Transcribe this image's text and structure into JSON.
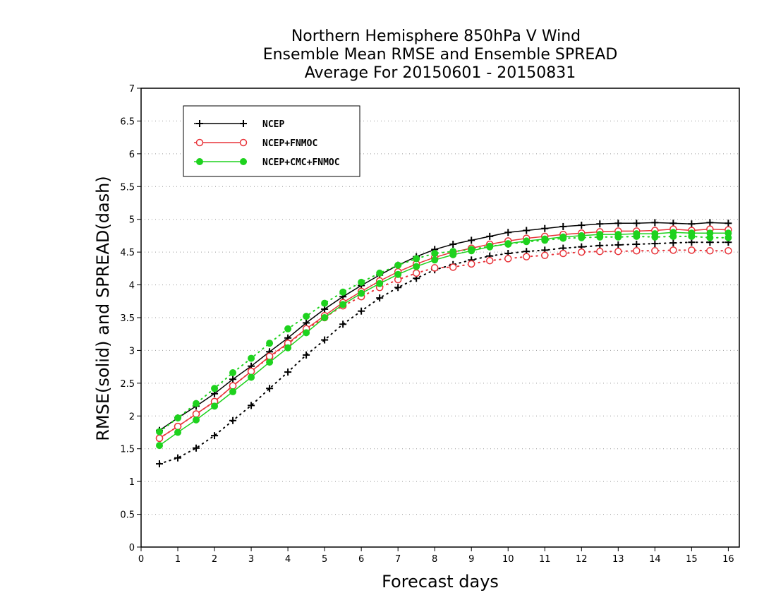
{
  "chart_data": {
    "type": "line",
    "title": [
      "Northern Hemisphere 850hPa V Wind",
      "Ensemble Mean RMSE and Ensemble SPREAD",
      "Average For 20150601 - 20150831"
    ],
    "xlabel": "Forecast days",
    "ylabel": "RMSE(solid)  and  SPREAD(dash)",
    "xlim": [
      0,
      16.3
    ],
    "ylim": [
      0,
      7
    ],
    "xticks": [
      0,
      1,
      2,
      3,
      4,
      5,
      6,
      7,
      8,
      9,
      10,
      11,
      12,
      13,
      14,
      15,
      16
    ],
    "yticks": [
      0,
      0.5,
      1,
      1.5,
      2,
      2.5,
      3,
      3.5,
      4,
      4.5,
      5,
      5.5,
      6,
      6.5,
      7
    ],
    "grid": "horizontal dotted",
    "legend_position": "top-left",
    "x": [
      0.5,
      1,
      1.5,
      2,
      2.5,
      3,
      3.5,
      4,
      4.5,
      5,
      5.5,
      6,
      6.5,
      7,
      7.5,
      8,
      8.5,
      9,
      9.5,
      10,
      10.5,
      11,
      11.5,
      12,
      12.5,
      13,
      13.5,
      14,
      14.5,
      15,
      15.5,
      16
    ],
    "series": [
      {
        "name": "NCEP",
        "color": "#000000",
        "marker": "plus",
        "rmse": [
          1.78,
          1.97,
          2.15,
          2.34,
          2.56,
          2.76,
          2.98,
          3.19,
          3.42,
          3.63,
          3.82,
          3.99,
          4.15,
          4.3,
          4.43,
          4.54,
          4.62,
          4.68,
          4.74,
          4.8,
          4.83,
          4.86,
          4.89,
          4.91,
          4.93,
          4.94,
          4.94,
          4.95,
          4.94,
          4.93,
          4.95,
          4.94
        ],
        "spread": [
          1.27,
          1.36,
          1.51,
          1.7,
          1.93,
          2.16,
          2.42,
          2.67,
          2.93,
          3.16,
          3.4,
          3.6,
          3.8,
          3.96,
          4.1,
          4.23,
          4.31,
          4.38,
          4.44,
          4.48,
          4.51,
          4.53,
          4.56,
          4.58,
          4.6,
          4.61,
          4.62,
          4.63,
          4.64,
          4.65,
          4.65,
          4.65
        ]
      },
      {
        "name": "NCEP+FNMOC",
        "color": "#e8343a",
        "marker": "open-circle",
        "rmse": [
          1.66,
          1.84,
          2.03,
          2.22,
          2.46,
          2.68,
          2.91,
          3.11,
          3.33,
          3.53,
          3.73,
          3.9,
          4.06,
          4.2,
          4.32,
          4.42,
          4.5,
          4.56,
          4.62,
          4.67,
          4.71,
          4.74,
          4.77,
          4.79,
          4.81,
          4.82,
          4.82,
          4.83,
          4.85,
          4.83,
          4.85,
          4.84
        ],
        "spread": [
          1.66,
          1.84,
          2.03,
          2.22,
          2.46,
          2.68,
          2.9,
          3.1,
          3.32,
          3.5,
          3.68,
          3.82,
          3.96,
          4.08,
          4.18,
          4.26,
          4.27,
          4.32,
          4.37,
          4.4,
          4.43,
          4.45,
          4.48,
          4.5,
          4.51,
          4.51,
          4.52,
          4.52,
          4.53,
          4.53,
          4.52,
          4.52
        ]
      },
      {
        "name": "NCEP+CMC+FNMOC",
        "color": "#1ed21e",
        "marker": "filled-circle",
        "rmse": [
          1.55,
          1.75,
          1.94,
          2.15,
          2.37,
          2.59,
          2.82,
          3.04,
          3.27,
          3.5,
          3.7,
          3.87,
          4.02,
          4.16,
          4.28,
          4.38,
          4.46,
          4.52,
          4.58,
          4.63,
          4.67,
          4.7,
          4.73,
          4.75,
          4.77,
          4.77,
          4.78,
          4.78,
          4.8,
          4.79,
          4.79,
          4.79
        ],
        "spread": [
          1.76,
          1.97,
          2.19,
          2.42,
          2.66,
          2.88,
          3.11,
          3.33,
          3.52,
          3.72,
          3.89,
          4.04,
          4.18,
          4.3,
          4.4,
          4.48,
          4.51,
          4.54,
          4.59,
          4.62,
          4.66,
          4.68,
          4.71,
          4.72,
          4.73,
          4.73,
          4.74,
          4.73,
          4.74,
          4.74,
          4.72,
          4.72
        ]
      }
    ]
  }
}
